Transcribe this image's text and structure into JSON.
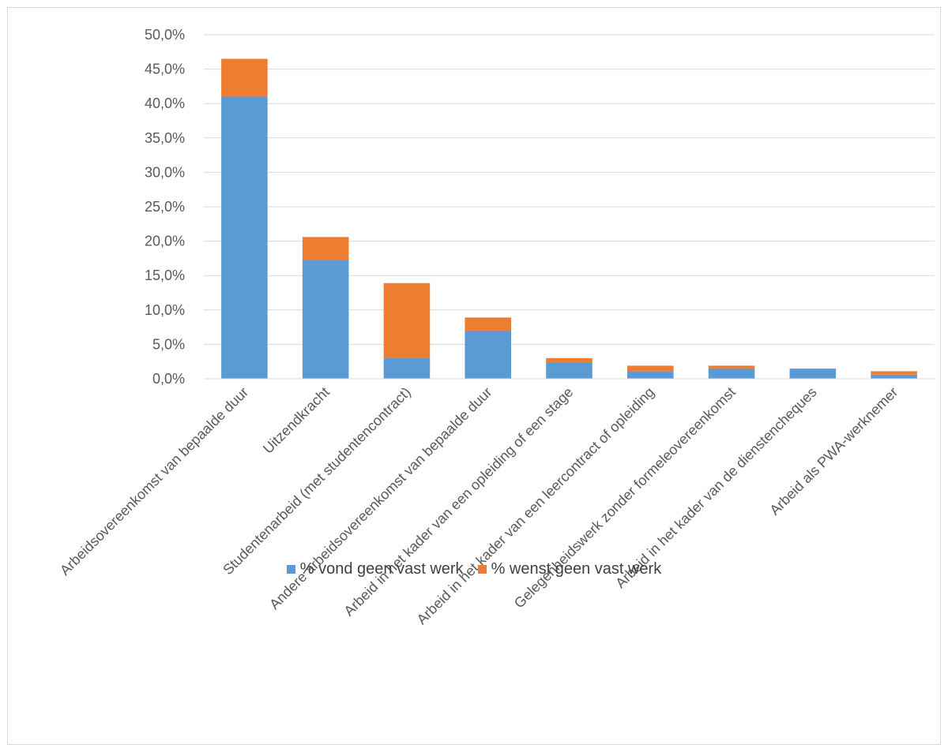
{
  "chart_data": {
    "type": "bar",
    "stacked": true,
    "categories": [
      "Arbeidsovereenkomst van bepaalde duur",
      "Uitzendkracht",
      "Studentenarbeid (met studentencontract)",
      "Andere arbeidsovereenkomst van bepaalde duur",
      "Arbeid in het kader van een opleiding of een stage",
      "Arbeid in het kader van een leercontract of opleiding",
      "Gelegenheidswerk zonder formeleovereenkomst",
      "Arbeid in het kader van de dienstencheques",
      "Arbeid als PWA-werknemer"
    ],
    "series": [
      {
        "name": "% vond geen vast werk",
        "color": "#5b9bd5",
        "values": [
          41.0,
          17.2,
          3.0,
          7.0,
          2.3,
          1.1,
          1.5,
          1.4,
          0.6
        ]
      },
      {
        "name": "% wenst geen vast werk",
        "color": "#ed7d31",
        "values": [
          5.5,
          3.4,
          10.9,
          1.9,
          0.7,
          0.8,
          0.4,
          0.1,
          0.5
        ]
      }
    ],
    "yticks": [
      "0,0%",
      "5,0%",
      "10,0%",
      "15,0%",
      "20,0%",
      "25,0%",
      "30,0%",
      "35,0%",
      "40,0%",
      "45,0%",
      "50,0%"
    ],
    "ylim": [
      0,
      50
    ],
    "grid": true,
    "legend_position": "bottom",
    "title": "",
    "xlabel": "",
    "ylabel": ""
  }
}
